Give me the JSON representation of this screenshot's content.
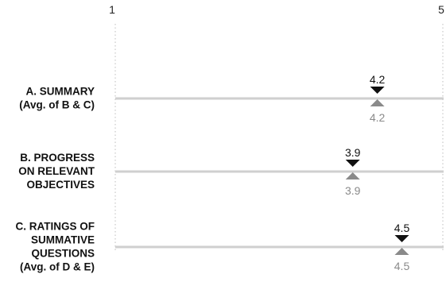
{
  "chart_data": {
    "type": "scatter",
    "xlim": [
      1,
      5
    ],
    "x_ticks": [
      "1",
      "5"
    ],
    "categories": [
      {
        "label_lines": [
          "A. SUMMARY",
          "(Avg. of B & C)"
        ],
        "value": 4.2,
        "value_label_top": "4.2",
        "value_label_bottom": "4.2"
      },
      {
        "label_lines": [
          "B. PROGRESS",
          "ON RELEVANT",
          "OBJECTIVES"
        ],
        "value": 3.9,
        "value_label_top": "3.9",
        "value_label_bottom": "3.9"
      },
      {
        "label_lines": [
          "C. RATINGS OF",
          "SUMMATIVE",
          "QUESTIONS",
          "(Avg. of D & E)"
        ],
        "value": 4.5,
        "value_label_top": "4.5",
        "value_label_bottom": "4.5"
      }
    ],
    "series": [
      {
        "marker": "down-triangle",
        "color": "#111111"
      },
      {
        "marker": "up-triangle",
        "color": "#8a8a8a"
      }
    ],
    "grid": false,
    "legend": "none"
  },
  "colors": {
    "row_line": "#cfcfcf",
    "axis_dotted": "#bdbdbd",
    "marker_top": "#111111",
    "marker_bottom": "#8a8a8a"
  }
}
